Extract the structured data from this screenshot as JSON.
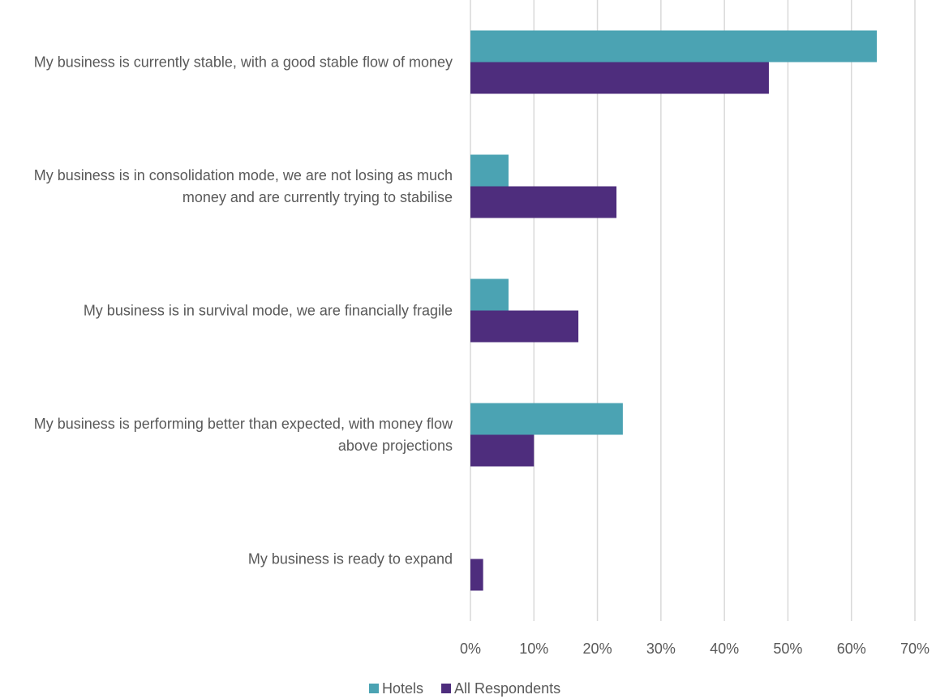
{
  "chart_data": {
    "type": "bar",
    "orientation": "horizontal",
    "categories": [
      "My business is currently stable, with a good stable flow of money",
      "My business is in consolidation mode, we are not losing as much money and are currently trying to stabilise",
      "My business is in survival mode, we are financially fragile",
      "My business is performing better than expected, with money flow above projections",
      "My business is ready to expand"
    ],
    "series": [
      {
        "name": "Hotels",
        "color": "#4ba3b3",
        "values": [
          64,
          6,
          6,
          24,
          0
        ]
      },
      {
        "name": "All Respondents",
        "color": "#4e2d7d",
        "values": [
          47,
          23,
          17,
          10,
          2
        ]
      }
    ],
    "xlim": [
      0,
      70
    ],
    "xticks": [
      {
        "value": 0,
        "label": "0%"
      },
      {
        "value": 10,
        "label": "10%"
      },
      {
        "value": 20,
        "label": "20%"
      },
      {
        "value": 30,
        "label": "30%"
      },
      {
        "value": 40,
        "label": "40%"
      },
      {
        "value": 50,
        "label": "50%"
      },
      {
        "value": 60,
        "label": "60%"
      },
      {
        "value": 70,
        "label": "70%"
      }
    ],
    "grid": true,
    "legend": "bottom"
  }
}
